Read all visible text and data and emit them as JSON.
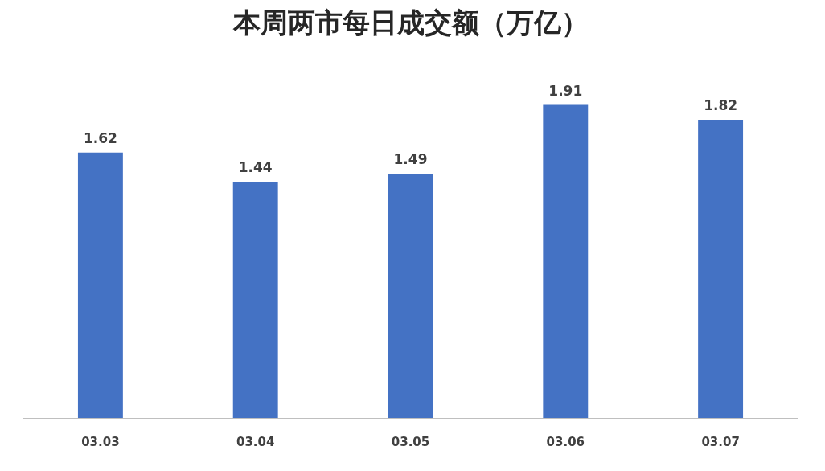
{
  "chart_data": {
    "type": "bar",
    "title": "本周两市每日成交额（万亿）",
    "categories": [
      "03.03",
      "03.04",
      "03.05",
      "03.06",
      "03.07"
    ],
    "values": [
      1.62,
      1.44,
      1.49,
      1.91,
      1.82
    ],
    "color": "#4472c4",
    "data_labels": true
  }
}
